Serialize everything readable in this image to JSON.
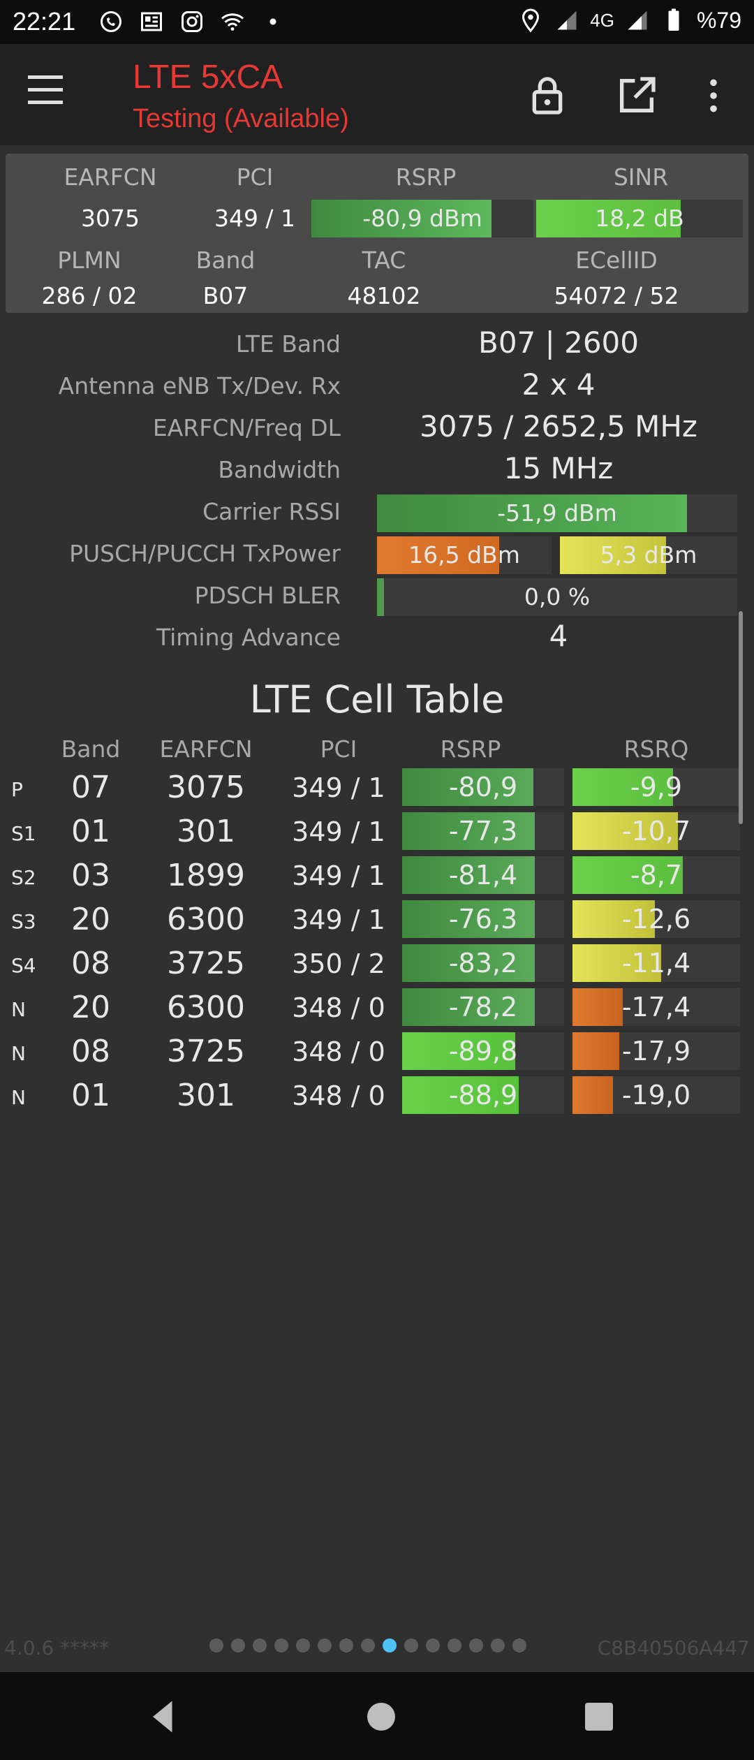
{
  "status_bar": {
    "time": "22:21",
    "network": "4G",
    "battery": "%79",
    "left_icons": [
      "whatsapp-icon",
      "news-icon",
      "instagram-icon",
      "wifi-icon",
      "dot-icon"
    ],
    "right_icons": [
      "location-icon",
      "signal-icon",
      "signal-4g-icon",
      "battery-icon"
    ]
  },
  "toolbar": {
    "title": "LTE 5xCA",
    "subtitle": "Testing (Available)",
    "title_color": "#e53935"
  },
  "summary": {
    "headers": {
      "earfcn": "EARFCN",
      "pci": "PCI",
      "rsrp": "RSRP",
      "sinr": "SINR",
      "plmn": "PLMN",
      "band": "Band",
      "tac": "TAC",
      "ecellid": "ECellID"
    },
    "values": {
      "earfcn": "3075",
      "pci": "349 / 1",
      "rsrp": "-80,9 dBm",
      "rsrp_level": 0.81,
      "sinr": "18,2 dB",
      "sinr_level": 0.7,
      "plmn": "286 / 02",
      "band": "B07",
      "tac": "48102",
      "ecellid": "54072 / 52"
    }
  },
  "details": [
    {
      "label": "LTE Band",
      "value": "B07 | 2600"
    },
    {
      "label": "Antenna eNB Tx/Dev. Rx",
      "value": "2 x 4"
    },
    {
      "label": "EARFCN/Freq DL",
      "value": "3075 / 2652,5 MHz"
    },
    {
      "label": "Bandwidth",
      "value": "15 MHz"
    },
    {
      "label": "Carrier RSSI",
      "value": "-51,9 dBm",
      "level": 0.86
    },
    {
      "label": "PUSCH/PUCCH TxPower",
      "value": "16,5 dBm",
      "value2": "5,3 dBm",
      "level": 0.7,
      "level2": 0.6
    },
    {
      "label": "PDSCH BLER",
      "value": "0,0 %",
      "level": 0.02
    },
    {
      "label": "Timing Advance",
      "value": "4"
    }
  ],
  "cell_table": {
    "title": "LTE Cell Table",
    "headers": [
      "Band",
      "EARFCN",
      "PCI",
      "RSRP",
      "RSRQ"
    ],
    "rows": [
      {
        "type": "P",
        "band": "07",
        "earfcn": "3075",
        "pci": "349 / 1",
        "rsrp": "-80,9",
        "rsrp_level": 0.81,
        "rsrq": "-9,9",
        "rsrq_level": 0.6
      },
      {
        "type": "S1",
        "band": "01",
        "earfcn": "301",
        "pci": "349 / 1",
        "rsrp": "-77,3",
        "rsrp_level": 0.82,
        "rsrq": "-10,7",
        "rsrq_level": 0.63
      },
      {
        "type": "S2",
        "band": "03",
        "earfcn": "1899",
        "pci": "349 / 1",
        "rsrp": "-81,4",
        "rsrp_level": 0.82,
        "rsrq": "-8,7",
        "rsrq_level": 0.66
      },
      {
        "type": "S3",
        "band": "20",
        "earfcn": "6300",
        "pci": "349 / 1",
        "rsrp": "-76,3",
        "rsrp_level": 0.82,
        "rsrq": "-12,6",
        "rsrq_level": 0.49
      },
      {
        "type": "S4",
        "band": "08",
        "earfcn": "3725",
        "pci": "350 / 2",
        "rsrp": "-83,2",
        "rsrp_level": 0.82,
        "rsrq": "-11,4",
        "rsrq_level": 0.53
      },
      {
        "type": "N",
        "band": "20",
        "earfcn": "6300",
        "pci": "348 / 0",
        "rsrp": "-78,2",
        "rsrp_level": 0.82,
        "rsrq": "-17,4",
        "rsrq_level": 0.3
      },
      {
        "type": "N",
        "band": "08",
        "earfcn": "3725",
        "pci": "348 / 0",
        "rsrp": "-89,8",
        "rsrp_level": 0.7,
        "rsrq": "-17,9",
        "rsrq_level": 0.28
      },
      {
        "type": "N",
        "band": "01",
        "earfcn": "301",
        "pci": "348 / 0",
        "rsrp": "-88,9",
        "rsrp_level": 0.72,
        "rsrq": "-19,0",
        "rsrq_level": 0.24
      }
    ]
  },
  "footer": {
    "version": "4.0.6 *****",
    "device_id": "C8B40506A447",
    "page_count": 15,
    "active_page": 8
  },
  "colors": {
    "bar_green_dark": "#4f9a4f",
    "bar_green_bright": "#6ad04a",
    "bar_yellow": "#d6d64a",
    "bar_orange": "#e07a30",
    "bar_track": "#3a3a3a",
    "active_dot": "#4fc3f7"
  }
}
